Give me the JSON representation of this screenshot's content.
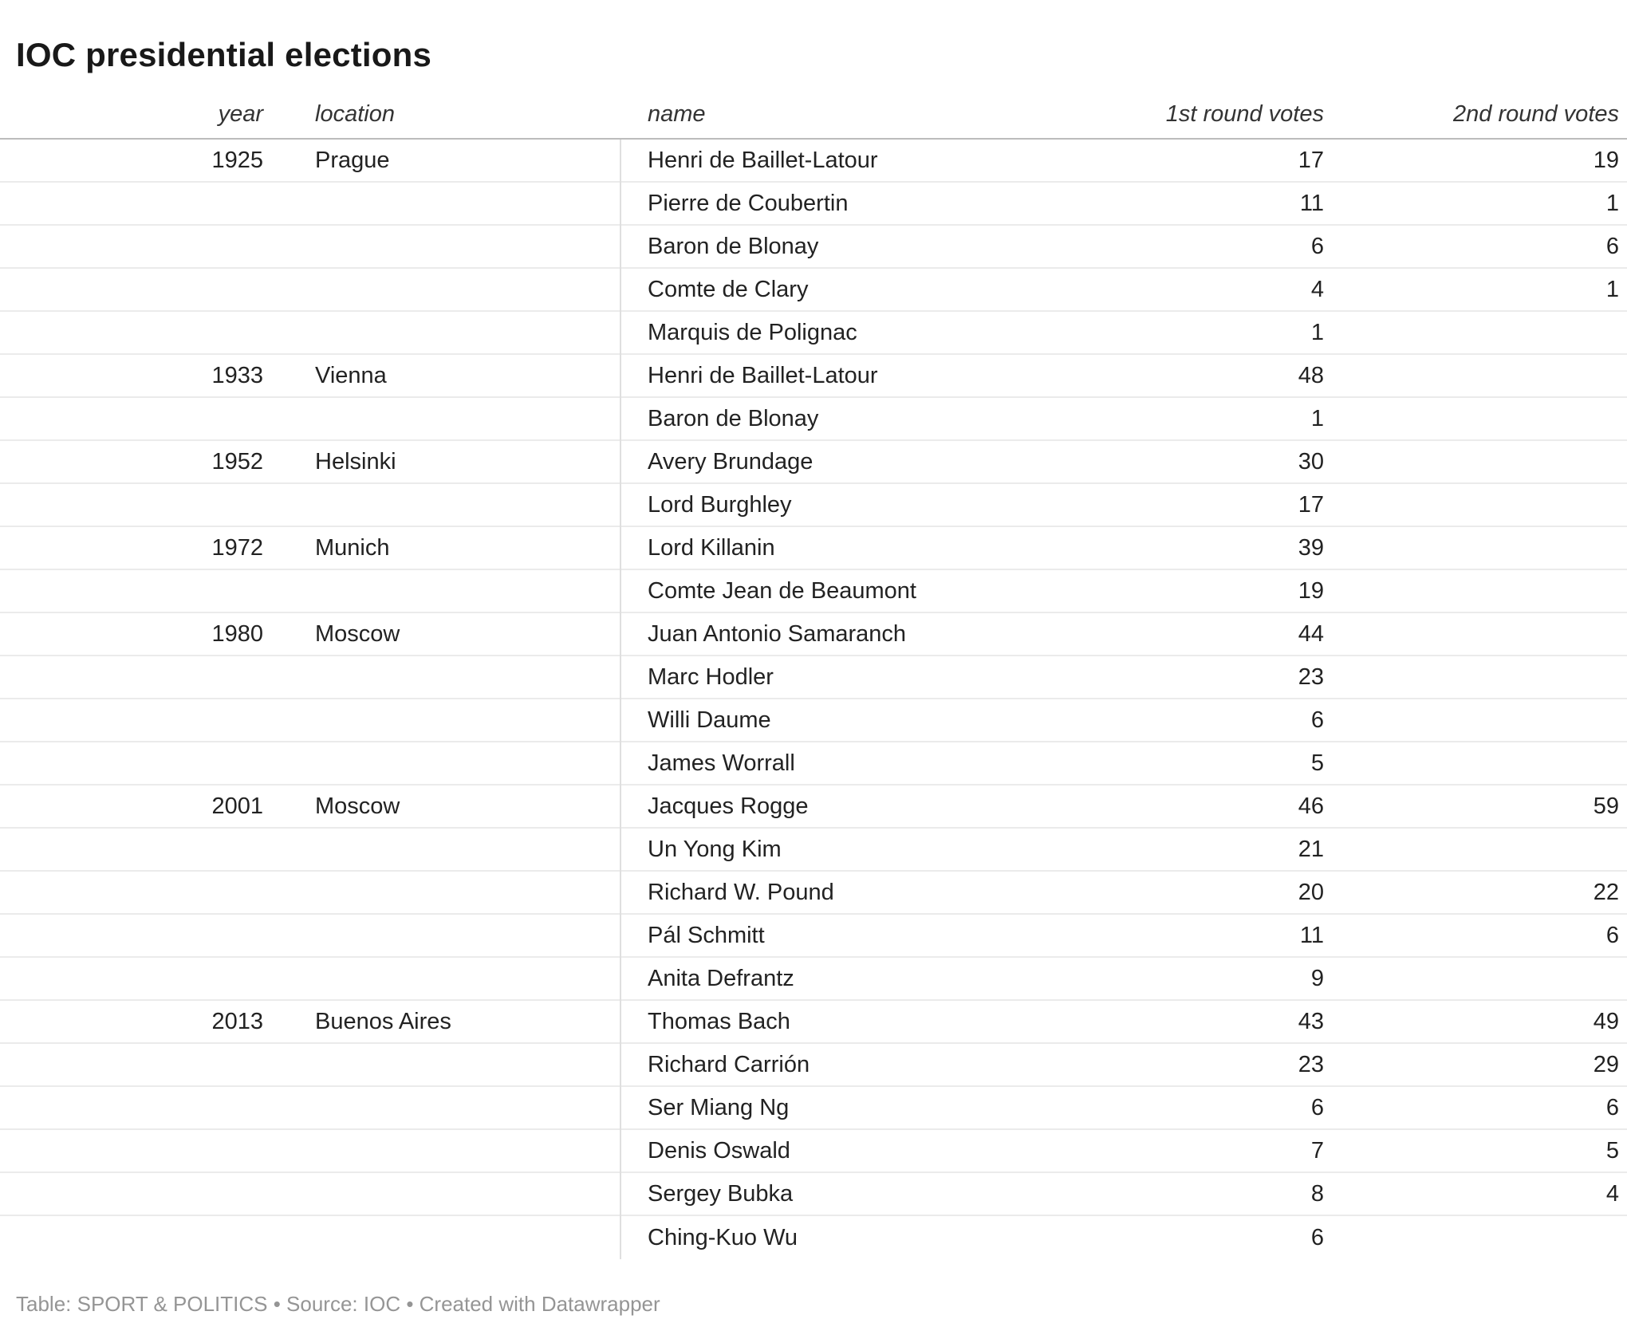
{
  "title": "IOC presidential elections",
  "chart_data": {
    "type": "table",
    "columns": [
      "year",
      "location",
      "name",
      "1st round votes",
      "2nd round votes"
    ],
    "rows": [
      {
        "year": "1925",
        "location": "Prague",
        "name": "Henri de Baillet-Latour",
        "round1": "17",
        "round2": "19"
      },
      {
        "year": "",
        "location": "",
        "name": "Pierre de Coubertin",
        "round1": "11",
        "round2": "1"
      },
      {
        "year": "",
        "location": "",
        "name": "Baron de Blonay",
        "round1": "6",
        "round2": "6"
      },
      {
        "year": "",
        "location": "",
        "name": "Comte de Clary",
        "round1": "4",
        "round2": "1"
      },
      {
        "year": "",
        "location": "",
        "name": "Marquis de Polignac",
        "round1": "1",
        "round2": ""
      },
      {
        "year": "1933",
        "location": "Vienna",
        "name": "Henri de Baillet-Latour",
        "round1": "48",
        "round2": ""
      },
      {
        "year": "",
        "location": "",
        "name": "Baron de Blonay",
        "round1": "1",
        "round2": ""
      },
      {
        "year": "1952",
        "location": "Helsinki",
        "name": "Avery Brundage",
        "round1": "30",
        "round2": ""
      },
      {
        "year": "",
        "location": "",
        "name": "Lord Burghley",
        "round1": "17",
        "round2": ""
      },
      {
        "year": "1972",
        "location": "Munich",
        "name": "Lord Killanin",
        "round1": "39",
        "round2": ""
      },
      {
        "year": "",
        "location": "",
        "name": "Comte Jean de Beaumont",
        "round1": "19",
        "round2": ""
      },
      {
        "year": "1980",
        "location": "Moscow",
        "name": "Juan Antonio Samaranch",
        "round1": "44",
        "round2": ""
      },
      {
        "year": "",
        "location": "",
        "name": "Marc Hodler",
        "round1": "23",
        "round2": ""
      },
      {
        "year": "",
        "location": "",
        "name": "Willi Daume",
        "round1": "6",
        "round2": ""
      },
      {
        "year": "",
        "location": "",
        "name": "James Worrall",
        "round1": "5",
        "round2": ""
      },
      {
        "year": "2001",
        "location": "Moscow",
        "name": "Jacques Rogge",
        "round1": "46",
        "round2": "59"
      },
      {
        "year": "",
        "location": "",
        "name": "Un Yong Kim",
        "round1": "21",
        "round2": ""
      },
      {
        "year": "",
        "location": "",
        "name": "Richard W. Pound",
        "round1": "20",
        "round2": "22"
      },
      {
        "year": "",
        "location": "",
        "name": "Pál Schmitt",
        "round1": "11",
        "round2": "6"
      },
      {
        "year": "",
        "location": "",
        "name": "Anita Defrantz",
        "round1": "9",
        "round2": ""
      },
      {
        "year": "2013",
        "location": "Buenos Aires",
        "name": "Thomas Bach",
        "round1": "43",
        "round2": "49"
      },
      {
        "year": "",
        "location": "",
        "name": "Richard Carrión",
        "round1": "23",
        "round2": "29"
      },
      {
        "year": "",
        "location": "",
        "name": "Ser Miang Ng",
        "round1": "6",
        "round2": "6"
      },
      {
        "year": "",
        "location": "",
        "name": "Denis Oswald",
        "round1": "7",
        "round2": "5"
      },
      {
        "year": "",
        "location": "",
        "name": "Sergey Bubka",
        "round1": "8",
        "round2": "4"
      },
      {
        "year": "",
        "location": "",
        "name": "Ching-Kuo Wu",
        "round1": "6",
        "round2": ""
      }
    ]
  },
  "footer": {
    "text": "Table: SPORT & POLITICS • Source: IOC • Created with Datawrapper"
  },
  "colors": {
    "background": "#ffffff",
    "title_text": "#191919",
    "body_text": "#222222",
    "header_text": "#333333",
    "footer_text": "#959595",
    "header_rule": "#bcbcbc",
    "row_rule": "#ebebeb",
    "column_divider": "#dfdfdf"
  }
}
